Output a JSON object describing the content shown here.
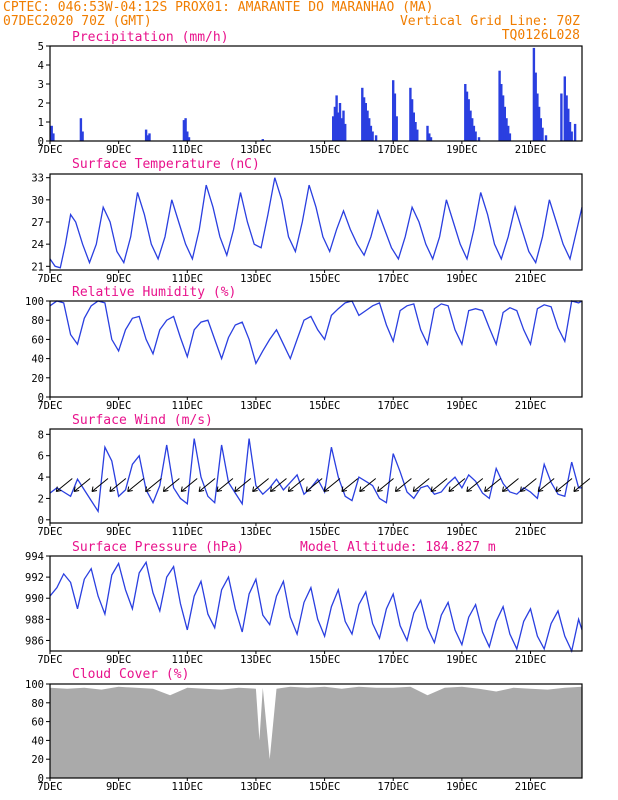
{
  "header": {
    "line1_left": "CPTEC:  046:53W-04:12S  PROX01: AMARANTE DO MARANHAO (MA)",
    "line2_left": "07DEC2020 70Z (GMT)",
    "line2_right": "Vertical Grid Line: 70Z",
    "line3_right": "TQ0126L028",
    "extra_right": "Model Altitude: 184.827 m"
  },
  "colors": {
    "header": "#f07d00",
    "panel_title": "#e8128c",
    "series": "#2a3fe0",
    "cloud": "#aaaaaa"
  },
  "x_tick_labels": [
    "7DEC",
    "9DEC",
    "11DEC",
    "13DEC",
    "15DEC",
    "17DEC",
    "19DEC",
    "21DEC"
  ],
  "x_tick_days": [
    0,
    2,
    4,
    6,
    8,
    10,
    12,
    14
  ],
  "xlim_days": [
    0,
    15.5
  ],
  "chart_data": [
    {
      "type": "bar",
      "title": "Precipitation (mm/h)",
      "ylim": [
        0,
        5
      ],
      "yticks": [
        "0",
        "1",
        "2",
        "3",
        "4",
        "5"
      ],
      "x_days": [
        0.05,
        0.1,
        0.9,
        0.95,
        2.8,
        2.85,
        2.9,
        3.9,
        3.95,
        4.0,
        4.05,
        6.2,
        8.25,
        8.3,
        8.35,
        8.4,
        8.45,
        8.5,
        8.55,
        8.6,
        9.1,
        9.15,
        9.2,
        9.25,
        9.3,
        9.35,
        9.4,
        9.5,
        10.0,
        10.05,
        10.1,
        10.5,
        10.55,
        10.6,
        10.65,
        10.7,
        11.0,
        11.05,
        11.1,
        12.1,
        12.15,
        12.2,
        12.25,
        12.3,
        12.35,
        12.4,
        12.5,
        13.1,
        13.15,
        13.2,
        13.25,
        13.3,
        13.35,
        13.4,
        14.1,
        14.15,
        14.2,
        14.25,
        14.3,
        14.35,
        14.45,
        14.9,
        15.0,
        15.05,
        15.1,
        15.15,
        15.2,
        15.3
      ],
      "values": [
        0.8,
        0.4,
        1.2,
        0.5,
        0.6,
        0.3,
        0.4,
        1.1,
        1.2,
        0.5,
        0.2,
        0.1,
        1.3,
        1.8,
        2.4,
        1.5,
        2.0,
        1.2,
        1.6,
        0.9,
        2.8,
        2.3,
        2.0,
        1.6,
        1.2,
        0.8,
        0.5,
        0.3,
        3.2,
        2.5,
        1.3,
        2.8,
        2.2,
        1.5,
        1.0,
        0.6,
        0.8,
        0.4,
        0.2,
        3.0,
        2.6,
        2.2,
        1.6,
        1.2,
        0.8,
        0.5,
        0.2,
        3.7,
        3.0,
        2.4,
        1.8,
        1.2,
        0.8,
        0.4,
        4.9,
        3.6,
        2.5,
        1.8,
        1.2,
        0.7,
        0.3,
        2.5,
        3.4,
        2.4,
        1.7,
        1.0,
        0.5,
        0.9
      ]
    },
    {
      "type": "line",
      "title": "Surface Temperature (nC)",
      "ylim": [
        20.5,
        33.5
      ],
      "yticks": [
        "21",
        "24",
        "27",
        "30",
        "33"
      ],
      "x_days": [
        0,
        0.15,
        0.3,
        0.45,
        0.6,
        0.75,
        0.95,
        1.15,
        1.35,
        1.55,
        1.75,
        1.95,
        2.15,
        2.35,
        2.55,
        2.75,
        2.95,
        3.15,
        3.35,
        3.55,
        3.75,
        3.95,
        4.15,
        4.35,
        4.55,
        4.75,
        4.95,
        5.15,
        5.35,
        5.55,
        5.75,
        5.95,
        6.15,
        6.35,
        6.55,
        6.75,
        6.95,
        7.15,
        7.35,
        7.55,
        7.75,
        7.95,
        8.15,
        8.35,
        8.55,
        8.75,
        8.95,
        9.15,
        9.35,
        9.55,
        9.75,
        9.95,
        10.15,
        10.35,
        10.55,
        10.75,
        10.95,
        11.15,
        11.35,
        11.55,
        11.75,
        11.95,
        12.15,
        12.35,
        12.55,
        12.75,
        12.95,
        13.15,
        13.35,
        13.55,
        13.75,
        13.95,
        14.15,
        14.35,
        14.55,
        14.75,
        14.95,
        15.15,
        15.35,
        15.5
      ],
      "values": [
        22,
        21,
        20.8,
        24,
        28,
        27,
        24,
        21.5,
        24,
        29,
        27,
        23,
        21.5,
        25,
        31,
        28,
        24,
        22,
        25,
        30,
        27,
        24,
        22,
        26,
        32,
        29,
        25,
        22.5,
        26,
        31,
        27,
        24,
        23.5,
        28,
        33,
        30,
        25,
        23,
        27,
        32,
        29,
        25,
        23,
        26,
        28.5,
        26,
        24,
        22.5,
        25,
        28.5,
        26,
        23.5,
        22,
        25,
        29,
        27,
        24,
        22,
        25,
        30,
        27,
        24,
        22,
        26,
        31,
        28,
        24,
        22,
        25,
        29,
        26,
        23,
        21.5,
        25,
        30,
        27,
        24,
        22,
        26,
        29
      ]
    },
    {
      "type": "line",
      "title": "Relative Humidity (%)",
      "ylim": [
        0,
        100
      ],
      "yticks": [
        "0",
        "20",
        "40",
        "60",
        "80",
        "100"
      ],
      "x_days": [
        0,
        0.2,
        0.4,
        0.6,
        0.8,
        1.0,
        1.2,
        1.4,
        1.6,
        1.8,
        2.0,
        2.2,
        2.4,
        2.6,
        2.8,
        3.0,
        3.2,
        3.4,
        3.6,
        3.8,
        4.0,
        4.2,
        4.4,
        4.6,
        4.8,
        5.0,
        5.2,
        5.4,
        5.6,
        5.8,
        6.0,
        6.2,
        6.4,
        6.6,
        6.8,
        7.0,
        7.2,
        7.4,
        7.6,
        7.8,
        8.0,
        8.2,
        8.4,
        8.6,
        8.8,
        9.0,
        9.2,
        9.4,
        9.6,
        9.8,
        10.0,
        10.2,
        10.4,
        10.6,
        10.8,
        11.0,
        11.2,
        11.4,
        11.6,
        11.8,
        12.0,
        12.2,
        12.4,
        12.6,
        12.8,
        13.0,
        13.2,
        13.4,
        13.6,
        13.8,
        14.0,
        14.2,
        14.4,
        14.6,
        14.8,
        15.0,
        15.2,
        15.4,
        15.5
      ],
      "values": [
        95,
        100,
        98,
        65,
        55,
        82,
        95,
        100,
        98,
        60,
        48,
        70,
        82,
        84,
        60,
        45,
        70,
        80,
        84,
        62,
        42,
        70,
        78,
        80,
        60,
        40,
        62,
        75,
        78,
        60,
        35,
        48,
        60,
        70,
        55,
        40,
        60,
        80,
        84,
        70,
        60,
        85,
        92,
        98,
        100,
        85,
        90,
        95,
        98,
        75,
        58,
        90,
        95,
        97,
        70,
        55,
        92,
        97,
        95,
        70,
        55,
        90,
        92,
        90,
        72,
        55,
        88,
        93,
        90,
        70,
        55,
        92,
        96,
        94,
        72,
        58,
        100,
        98,
        100
      ]
    },
    {
      "type": "line",
      "title": "Surface Wind (m/s)",
      "ylim": [
        -0.3,
        8.5
      ],
      "yticks": [
        "0",
        "2",
        "4",
        "6",
        "8"
      ],
      "x_days": [
        0,
        0.2,
        0.4,
        0.6,
        0.8,
        1.0,
        1.2,
        1.4,
        1.6,
        1.8,
        2.0,
        2.2,
        2.4,
        2.6,
        2.8,
        3.0,
        3.2,
        3.4,
        3.6,
        3.8,
        4.0,
        4.2,
        4.4,
        4.6,
        4.8,
        5.0,
        5.2,
        5.4,
        5.6,
        5.8,
        6.0,
        6.2,
        6.4,
        6.6,
        6.8,
        7.0,
        7.2,
        7.4,
        7.6,
        7.8,
        8.0,
        8.2,
        8.4,
        8.6,
        8.8,
        9.0,
        9.2,
        9.4,
        9.6,
        9.8,
        10.0,
        10.2,
        10.4,
        10.6,
        10.8,
        11.0,
        11.2,
        11.4,
        11.6,
        11.8,
        12.0,
        12.2,
        12.4,
        12.6,
        12.8,
        13.0,
        13.2,
        13.4,
        13.6,
        13.8,
        14.0,
        14.2,
        14.4,
        14.6,
        14.8,
        15.0,
        15.2,
        15.4,
        15.5
      ],
      "values": [
        2.5,
        3.0,
        2.6,
        2.2,
        3.8,
        2.8,
        1.8,
        0.8,
        6.8,
        5.5,
        2.2,
        2.8,
        5.2,
        6.0,
        2.8,
        1.6,
        3.2,
        7.0,
        3.0,
        2.0,
        1.5,
        7.6,
        4.0,
        2.2,
        1.6,
        7.0,
        3.5,
        2.5,
        1.5,
        7.6,
        3.2,
        2.4,
        3.0,
        3.8,
        2.8,
        3.5,
        4.2,
        2.4,
        3.0,
        3.8,
        2.6,
        6.8,
        4.0,
        2.2,
        1.8,
        4.0,
        3.6,
        3.2,
        2.0,
        1.6,
        6.2,
        4.5,
        2.6,
        2.0,
        3.0,
        3.2,
        2.4,
        2.6,
        3.4,
        4.0,
        3.0,
        4.2,
        3.6,
        2.5,
        2.0,
        4.8,
        3.4,
        2.6,
        2.4,
        3.0,
        2.6,
        2.0,
        5.2,
        3.5,
        2.4,
        2.2,
        5.4,
        3.0,
        3.0
      ]
    },
    {
      "type": "line",
      "title": "Surface Pressure (hPa)",
      "ylim": [
        985,
        994
      ],
      "yticks": [
        "986",
        "988",
        "990",
        "992",
        "994"
      ],
      "x_days": [
        0,
        0.2,
        0.4,
        0.6,
        0.8,
        1.0,
        1.2,
        1.4,
        1.6,
        1.8,
        2.0,
        2.2,
        2.4,
        2.6,
        2.8,
        3.0,
        3.2,
        3.4,
        3.6,
        3.8,
        4.0,
        4.2,
        4.4,
        4.6,
        4.8,
        5.0,
        5.2,
        5.4,
        5.6,
        5.8,
        6.0,
        6.2,
        6.4,
        6.6,
        6.8,
        7.0,
        7.2,
        7.4,
        7.6,
        7.8,
        8.0,
        8.2,
        8.4,
        8.6,
        8.8,
        9.0,
        9.2,
        9.4,
        9.6,
        9.8,
        10.0,
        10.2,
        10.4,
        10.6,
        10.8,
        11.0,
        11.2,
        11.4,
        11.6,
        11.8,
        12.0,
        12.2,
        12.4,
        12.6,
        12.8,
        13.0,
        13.2,
        13.4,
        13.6,
        13.8,
        14.0,
        14.2,
        14.4,
        14.6,
        14.8,
        15.0,
        15.2,
        15.4,
        15.5
      ],
      "values": [
        990.2,
        991.0,
        992.3,
        991.5,
        989.0,
        991.8,
        992.8,
        990.2,
        988.5,
        992.2,
        993.3,
        990.8,
        989.0,
        992.4,
        993.4,
        990.5,
        988.8,
        992.0,
        993.0,
        989.5,
        987.0,
        990.2,
        991.6,
        988.5,
        987.2,
        990.8,
        992.0,
        989.0,
        986.8,
        990.4,
        991.8,
        988.4,
        987.5,
        990.2,
        991.6,
        988.2,
        986.6,
        989.6,
        991.0,
        988.0,
        986.4,
        989.2,
        990.8,
        987.8,
        986.6,
        989.4,
        990.6,
        987.6,
        986.2,
        989.0,
        990.4,
        987.4,
        986.0,
        988.6,
        989.8,
        987.2,
        985.8,
        988.4,
        989.6,
        987.0,
        985.6,
        988.2,
        989.4,
        986.8,
        985.4,
        987.8,
        989.2,
        986.6,
        985.2,
        987.8,
        989.0,
        986.4,
        985.2,
        987.6,
        988.8,
        986.4,
        985.0,
        988.0,
        987.0
      ]
    },
    {
      "type": "area",
      "title": "Cloud Cover (%)",
      "ylim": [
        0,
        100
      ],
      "yticks": [
        "0",
        "20",
        "40",
        "60",
        "80",
        "100"
      ],
      "x_days": [
        0,
        0.5,
        1.0,
        1.5,
        2.0,
        2.5,
        3.0,
        3.5,
        4.0,
        4.5,
        5.0,
        5.5,
        6.0,
        6.1,
        6.2,
        6.4,
        6.6,
        7.0,
        7.5,
        8.0,
        8.5,
        9.0,
        9.5,
        10.0,
        10.5,
        11.0,
        11.5,
        12.0,
        12.5,
        13.0,
        13.5,
        14.0,
        14.5,
        15.0,
        15.5
      ],
      "values": [
        96,
        95,
        96,
        94,
        97,
        96,
        95,
        88,
        96,
        95,
        94,
        96,
        95,
        40,
        96,
        20,
        95,
        97,
        96,
        97,
        95,
        97,
        96,
        96,
        97,
        88,
        96,
        97,
        95,
        92,
        96,
        95,
        94,
        96,
        97
      ]
    }
  ]
}
